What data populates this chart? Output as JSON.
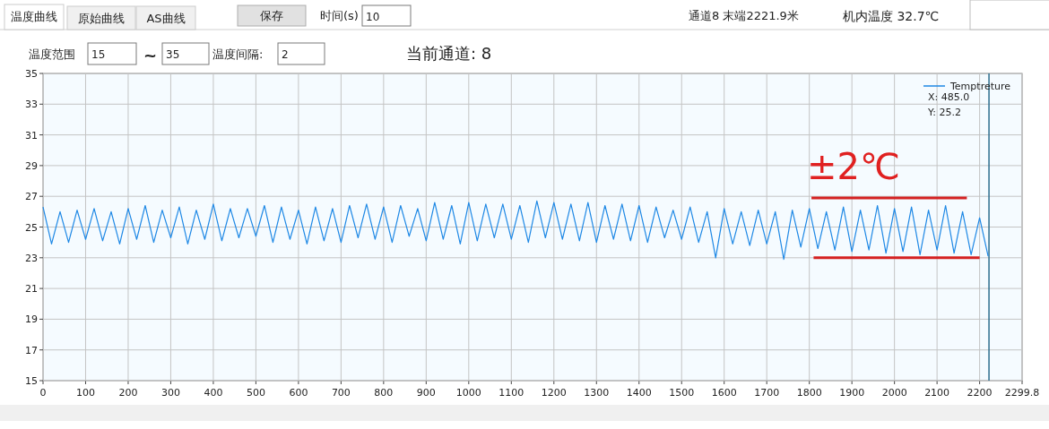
{
  "chart_data": {
    "type": "line",
    "xlim": [
      0,
      2299.8
    ],
    "xticks": [
      0,
      100,
      200,
      300,
      400,
      500,
      600,
      700,
      800,
      900,
      1000,
      1100,
      1200,
      1300,
      1400,
      1500,
      1600,
      1700,
      1800,
      1900,
      2000,
      2100,
      2200,
      2299.8
    ],
    "ylim": [
      15,
      35
    ],
    "yticks": [
      15,
      17,
      19,
      21,
      23,
      25,
      27,
      29,
      31,
      33,
      35
    ],
    "grid": true,
    "legend": "top right",
    "series": [
      {
        "name": "Temptreture",
        "color": "#1e88e5",
        "x": [
          0,
          20,
          40,
          60,
          80,
          100,
          120,
          140,
          160,
          180,
          200,
          220,
          240,
          260,
          280,
          300,
          320,
          340,
          360,
          380,
          400,
          420,
          440,
          460,
          480,
          500,
          520,
          540,
          560,
          580,
          600,
          620,
          640,
          660,
          680,
          700,
          720,
          740,
          760,
          780,
          800,
          820,
          840,
          860,
          880,
          900,
          920,
          940,
          960,
          980,
          1000,
          1020,
          1040,
          1060,
          1080,
          1100,
          1120,
          1140,
          1160,
          1180,
          1200,
          1220,
          1240,
          1260,
          1280,
          1300,
          1320,
          1340,
          1360,
          1380,
          1400,
          1420,
          1440,
          1460,
          1480,
          1500,
          1520,
          1540,
          1560,
          1580,
          1600,
          1620,
          1640,
          1660,
          1680,
          1700,
          1720,
          1740,
          1760,
          1780,
          1800,
          1820,
          1840,
          1860,
          1880,
          1900,
          1920,
          1940,
          1960,
          1980,
          2000,
          2020,
          2040,
          2060,
          2080,
          2100,
          2120,
          2140,
          2160,
          2180,
          2200,
          2220
        ],
        "values": [
          26.3,
          23.9,
          26.0,
          24.0,
          26.1,
          24.2,
          26.2,
          24.1,
          26.0,
          23.9,
          26.2,
          24.2,
          26.4,
          24.0,
          26.1,
          24.3,
          26.3,
          23.9,
          26.1,
          24.2,
          26.5,
          24.1,
          26.2,
          24.3,
          26.2,
          24.4,
          26.4,
          24.0,
          26.3,
          24.2,
          26.1,
          23.9,
          26.3,
          24.1,
          26.2,
          24.0,
          26.4,
          24.3,
          26.5,
          24.2,
          26.3,
          24.0,
          26.4,
          24.4,
          26.2,
          24.1,
          26.6,
          24.2,
          26.4,
          23.9,
          26.6,
          24.1,
          26.5,
          24.3,
          26.5,
          24.2,
          26.4,
          24.0,
          26.7,
          24.3,
          26.6,
          24.2,
          26.5,
          24.1,
          26.6,
          24.0,
          26.4,
          24.2,
          26.5,
          24.1,
          26.4,
          24.0,
          26.3,
          24.3,
          26.1,
          24.2,
          26.3,
          24.0,
          26.0,
          23.0,
          26.2,
          23.9,
          26.0,
          23.8,
          26.1,
          23.9,
          26.0,
          22.9,
          26.1,
          23.7,
          26.2,
          23.6,
          26.0,
          23.5,
          26.3,
          23.4,
          26.1,
          23.5,
          26.4,
          23.3,
          26.2,
          23.4,
          26.3,
          23.2,
          26.1,
          23.5,
          26.4,
          23.3,
          26.0,
          23.2,
          25.6,
          23.1
        ]
      },
      {
        "color": "#d42020",
        "x": [
          1805,
          2170
        ],
        "values": [
          26.9,
          26.9
        ]
      },
      {
        "color": "#d42020",
        "x": [
          1810,
          2200
        ],
        "values": [
          23.0,
          23.0
        ]
      }
    ],
    "ref_lines": [
      {
        "axis": "x",
        "value": 2222,
        "color": "#2e6e8e"
      }
    ],
    "annotations": [
      "温度曲线",
      "原始曲线",
      "AS曲线",
      "保存",
      "时间(s)",
      "10",
      "通道8  末端2221.9米",
      "机内温度  32.7℃",
      "温度范围",
      "15",
      "~",
      "35",
      "温度间隔:",
      "2",
      "当前通道:   8",
      "X: 485.0",
      "Y: 25.2",
      "±2℃"
    ]
  }
}
